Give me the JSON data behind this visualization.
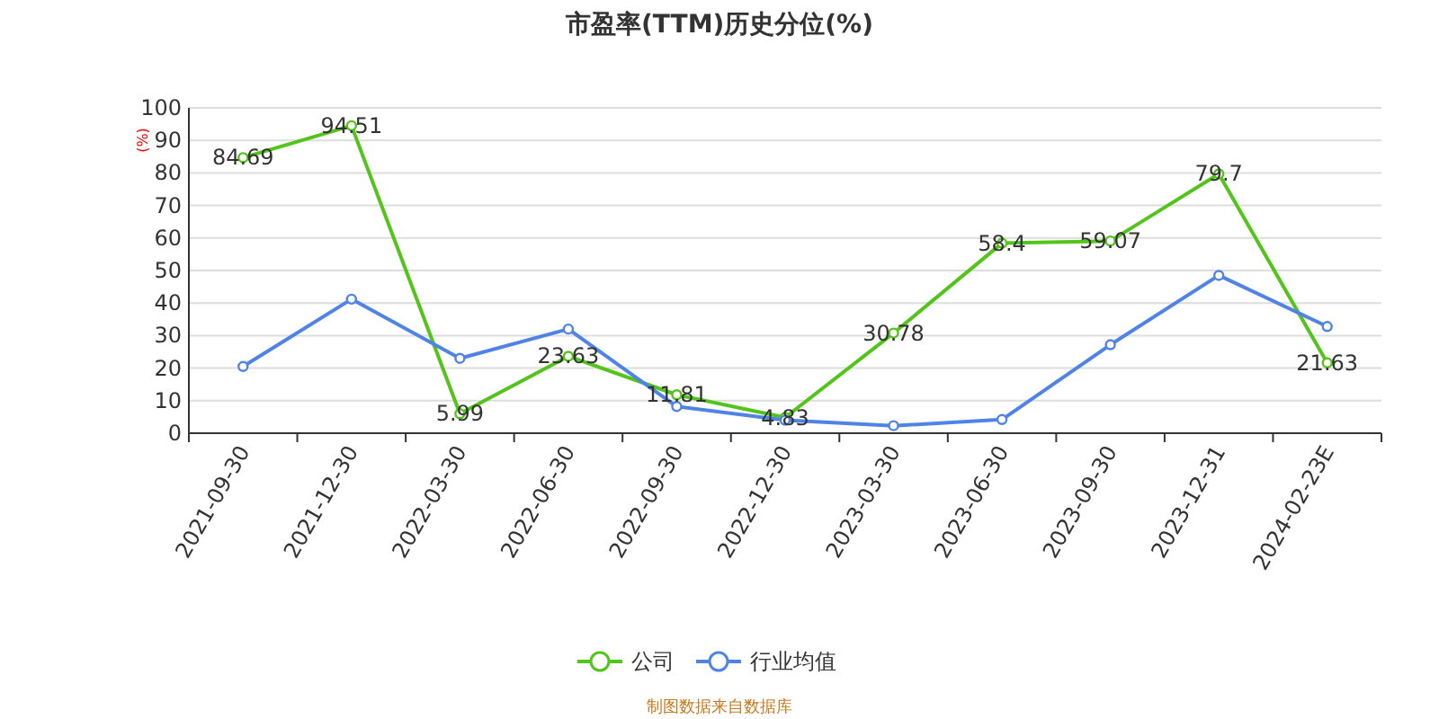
{
  "chart_data": {
    "type": "line",
    "title": "市盈率(TTM)历史分位(%)",
    "ylabel": "(%)",
    "categories": [
      "2021-09-30",
      "2021-12-30",
      "2022-03-30",
      "2022-06-30",
      "2022-09-30",
      "2022-12-30",
      "2023-03-30",
      "2023-06-30",
      "2023-09-30",
      "2023-12-31",
      "2024-02-23E"
    ],
    "series": [
      {
        "name": "公司",
        "color": "#52c41a",
        "values": [
          84.69,
          94.51,
          5.99,
          23.63,
          11.81,
          4.83,
          30.78,
          58.4,
          59.07,
          79.7,
          21.63
        ],
        "value_labels": [
          "84.69",
          "94.51",
          "5.99",
          "23.63",
          "11.81",
          "4.83",
          "30.78",
          "58.4",
          "59.07",
          "79.7",
          "21.63"
        ]
      },
      {
        "name": "行业均值",
        "color": "#4f84e6",
        "values": [
          20.5,
          41.2,
          23,
          32,
          8.2,
          4,
          2.3,
          4.2,
          27.2,
          48.5,
          32.8
        ]
      }
    ],
    "ylim": [
      0,
      100
    ],
    "yticks": [
      0,
      10,
      20,
      30,
      40,
      50,
      60,
      70,
      80,
      90,
      100
    ],
    "grid": "y",
    "legend": "bottom",
    "marker": "circle",
    "line_style": "solid",
    "annotations": [
      "制图数据来自数据库"
    ]
  }
}
